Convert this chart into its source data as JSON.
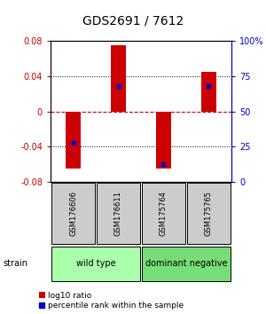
{
  "title": "GDS2691 / 7612",
  "samples": [
    "GSM176606",
    "GSM176611",
    "GSM175764",
    "GSM175765"
  ],
  "log10_ratios": [
    -0.065,
    0.075,
    -0.065,
    0.045
  ],
  "percentile_ranks": [
    0.28,
    0.68,
    0.13,
    0.68
  ],
  "groups": [
    {
      "label": "wild type",
      "samples_idx": [
        0,
        1
      ],
      "color": "#aaffaa"
    },
    {
      "label": "dominant negative",
      "samples_idx": [
        2,
        3
      ],
      "color": "#77dd77"
    }
  ],
  "group_row_label": "strain",
  "ylim_left": [
    -0.08,
    0.08
  ],
  "yticks_left": [
    -0.08,
    -0.04,
    0,
    0.04,
    0.08
  ],
  "ytick_labels_left": [
    "-0.08",
    "-0.04",
    "0",
    "0.04",
    "0.08"
  ],
  "yticks_right": [
    0.0,
    0.25,
    0.5,
    0.75,
    1.0
  ],
  "ytick_labels_right": [
    "0",
    "25",
    "50",
    "75",
    "100%"
  ],
  "bar_color": "#cc0000",
  "dot_color": "#0000cc",
  "bar_width": 0.35,
  "legend_bar_label": "log10 ratio",
  "legend_dot_label": "percentile rank within the sample",
  "left_tick_color": "#cc0000",
  "right_tick_color": "#0000cc",
  "zero_line_color": "#cc0000",
  "grid_color": "#000000",
  "background_color": "#ffffff",
  "sample_box_color": "#cccccc",
  "figsize": [
    3.0,
    3.54
  ],
  "dpi": 100
}
